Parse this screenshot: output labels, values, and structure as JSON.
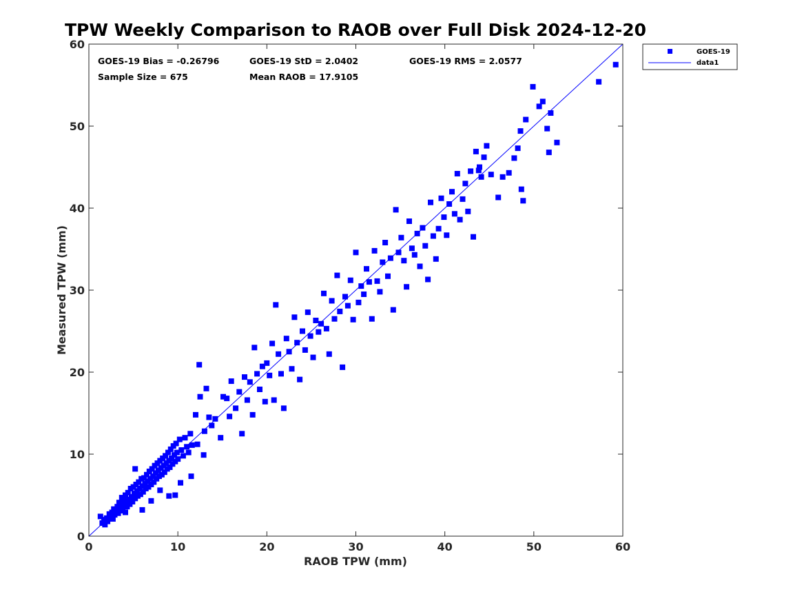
{
  "chart_data": {
    "type": "scatter",
    "title": "TPW Weekly Comparison to RAOB over Full Disk 2024-12-20",
    "xlabel": "RAOB TPW (mm)",
    "ylabel": "Measured TPW (mm)",
    "xlim": [
      0,
      60
    ],
    "ylim": [
      0,
      60
    ],
    "xticks": [
      0,
      10,
      20,
      30,
      40,
      50,
      60
    ],
    "yticks": [
      0,
      10,
      20,
      30,
      40,
      50,
      60
    ],
    "grid": false,
    "legend_position": "outside-top-right",
    "colors": {
      "marker": "#0000ff",
      "line": "#0000ff",
      "axis": "#262626"
    },
    "stats": {
      "bias": "GOES-19 Bias = -0.26796",
      "std": "GOES-19 StD = 2.0402",
      "rms": "GOES-19 RMS = 2.0577",
      "sample_size": "Sample Size = 675",
      "mean_raob": "Mean RAOB = 17.9105"
    },
    "series": [
      {
        "name": "GOES-19",
        "kind": "scatter",
        "marker": "square",
        "points": [
          [
            1.3,
            2.4
          ],
          [
            1.5,
            1.6
          ],
          [
            1.7,
            2.0
          ],
          [
            1.8,
            1.4
          ],
          [
            2.0,
            2.2
          ],
          [
            2.1,
            1.8
          ],
          [
            2.3,
            2.7
          ],
          [
            2.4,
            2.3
          ],
          [
            2.6,
            2.9
          ],
          [
            2.7,
            2.1
          ],
          [
            2.8,
            3.3
          ],
          [
            2.9,
            2.6
          ],
          [
            3.1,
            3.0
          ],
          [
            3.2,
            3.6
          ],
          [
            3.3,
            2.8
          ],
          [
            3.4,
            4.1
          ],
          [
            3.5,
            3.3
          ],
          [
            3.6,
            3.8
          ],
          [
            3.7,
            4.7
          ],
          [
            3.8,
            3.1
          ],
          [
            3.9,
            4.4
          ],
          [
            4.0,
            3.7
          ],
          [
            4.1,
            5.0
          ],
          [
            4.2,
            4.2
          ],
          [
            4.3,
            3.6
          ],
          [
            4.4,
            5.3
          ],
          [
            4.5,
            4.5
          ],
          [
            4.6,
            3.9
          ],
          [
            4.7,
            5.8
          ],
          [
            4.8,
            4.8
          ],
          [
            4.9,
            4.2
          ],
          [
            5.0,
            6.0
          ],
          [
            5.1,
            5.2
          ],
          [
            5.2,
            4.6
          ],
          [
            5.3,
            6.3
          ],
          [
            5.4,
            5.5
          ],
          [
            5.5,
            4.9
          ],
          [
            5.6,
            6.6
          ],
          [
            5.7,
            5.8
          ],
          [
            5.8,
            5.1
          ],
          [
            5.9,
            7.0
          ],
          [
            6.0,
            6.1
          ],
          [
            6.1,
            5.4
          ],
          [
            6.2,
            7.1
          ],
          [
            6.3,
            6.4
          ],
          [
            6.4,
            5.8
          ],
          [
            6.5,
            7.5
          ],
          [
            6.6,
            6.7
          ],
          [
            6.7,
            6.0
          ],
          [
            6.8,
            7.9
          ],
          [
            6.9,
            7.0
          ],
          [
            7.0,
            6.3
          ],
          [
            7.1,
            8.2
          ],
          [
            7.2,
            7.3
          ],
          [
            7.3,
            6.6
          ],
          [
            7.4,
            8.6
          ],
          [
            7.5,
            7.7
          ],
          [
            7.6,
            7.0
          ],
          [
            7.7,
            8.9
          ],
          [
            7.8,
            8.0
          ],
          [
            7.9,
            7.3
          ],
          [
            8.0,
            9.2
          ],
          [
            8.1,
            8.3
          ],
          [
            8.2,
            7.5
          ],
          [
            8.3,
            9.5
          ],
          [
            8.4,
            8.6
          ],
          [
            8.5,
            7.8
          ],
          [
            8.6,
            9.8
          ],
          [
            8.7,
            8.9
          ],
          [
            8.8,
            8.2
          ],
          [
            8.9,
            10.2
          ],
          [
            9.0,
            9.2
          ],
          [
            9.1,
            8.4
          ],
          [
            9.2,
            10.6
          ],
          [
            9.3,
            9.5
          ],
          [
            9.4,
            8.8
          ],
          [
            9.5,
            11.0
          ],
          [
            9.6,
            9.9
          ],
          [
            9.7,
            9.1
          ],
          [
            9.8,
            11.3
          ],
          [
            9.9,
            10.2
          ],
          [
            10.0,
            9.4
          ],
          [
            10.2,
            11.8
          ],
          [
            10.4,
            10.5
          ],
          [
            10.6,
            9.8
          ],
          [
            10.8,
            12.0
          ],
          [
            11.0,
            10.9
          ],
          [
            11.2,
            10.2
          ],
          [
            11.4,
            12.5
          ],
          [
            11.6,
            11.1
          ],
          [
            4.1,
            2.9
          ],
          [
            5.2,
            8.2
          ],
          [
            6.0,
            3.2
          ],
          [
            7.0,
            4.3
          ],
          [
            8.0,
            5.6
          ],
          [
            9.0,
            4.9
          ],
          [
            9.7,
            5.0
          ],
          [
            10.3,
            6.5
          ],
          [
            11.5,
            7.3
          ],
          [
            12.4,
            20.9
          ],
          [
            12.5,
            17.0
          ],
          [
            13.2,
            18.0
          ],
          [
            12.0,
            14.8
          ],
          [
            13.5,
            14.5
          ],
          [
            12.9,
            9.9
          ],
          [
            12.2,
            11.2
          ],
          [
            13.0,
            12.8
          ],
          [
            13.8,
            13.5
          ],
          [
            14.2,
            14.3
          ],
          [
            14.8,
            12.0
          ],
          [
            15.1,
            17.0
          ],
          [
            15.5,
            16.8
          ],
          [
            15.8,
            14.6
          ],
          [
            16.0,
            18.9
          ],
          [
            16.5,
            15.6
          ],
          [
            16.9,
            17.6
          ],
          [
            17.2,
            12.5
          ],
          [
            17.5,
            19.4
          ],
          [
            17.8,
            16.6
          ],
          [
            18.1,
            18.8
          ],
          [
            18.4,
            14.8
          ],
          [
            18.6,
            23.0
          ],
          [
            18.9,
            19.8
          ],
          [
            19.2,
            17.9
          ],
          [
            19.5,
            20.7
          ],
          [
            19.8,
            16.4
          ],
          [
            20.0,
            21.1
          ],
          [
            20.3,
            19.6
          ],
          [
            20.6,
            23.5
          ],
          [
            20.8,
            16.6
          ],
          [
            21.0,
            28.2
          ],
          [
            21.3,
            22.2
          ],
          [
            21.6,
            19.8
          ],
          [
            21.9,
            15.6
          ],
          [
            22.2,
            24.1
          ],
          [
            22.5,
            22.5
          ],
          [
            22.8,
            20.4
          ],
          [
            23.1,
            26.7
          ],
          [
            23.4,
            23.6
          ],
          [
            23.7,
            19.1
          ],
          [
            24.0,
            25.0
          ],
          [
            24.3,
            22.7
          ],
          [
            24.6,
            27.3
          ],
          [
            24.9,
            24.4
          ],
          [
            25.2,
            21.8
          ],
          [
            25.5,
            26.3
          ],
          [
            25.8,
            24.9
          ],
          [
            26.1,
            25.9
          ],
          [
            26.4,
            29.6
          ],
          [
            26.7,
            25.3
          ],
          [
            27.0,
            22.2
          ],
          [
            27.3,
            28.7
          ],
          [
            27.6,
            26.5
          ],
          [
            27.9,
            31.8
          ],
          [
            28.2,
            27.4
          ],
          [
            28.5,
            20.6
          ],
          [
            28.8,
            29.2
          ],
          [
            29.1,
            28.1
          ],
          [
            29.4,
            31.2
          ],
          [
            29.7,
            26.4
          ],
          [
            30.0,
            34.6
          ],
          [
            30.3,
            28.5
          ],
          [
            30.6,
            30.5
          ],
          [
            30.9,
            29.5
          ],
          [
            31.2,
            32.6
          ],
          [
            31.5,
            31.0
          ],
          [
            31.8,
            26.5
          ],
          [
            32.1,
            34.8
          ],
          [
            32.4,
            31.1
          ],
          [
            32.7,
            29.8
          ],
          [
            33.0,
            33.4
          ],
          [
            33.3,
            35.8
          ],
          [
            33.6,
            31.7
          ],
          [
            33.9,
            33.9
          ],
          [
            34.2,
            27.6
          ],
          [
            34.5,
            39.8
          ],
          [
            34.8,
            34.6
          ],
          [
            35.1,
            36.4
          ],
          [
            35.4,
            33.6
          ],
          [
            35.7,
            30.4
          ],
          [
            36.0,
            38.4
          ],
          [
            36.3,
            35.1
          ],
          [
            36.6,
            34.3
          ],
          [
            36.9,
            36.9
          ],
          [
            37.2,
            32.9
          ],
          [
            37.5,
            37.6
          ],
          [
            37.8,
            35.4
          ],
          [
            38.1,
            31.3
          ],
          [
            38.4,
            40.7
          ],
          [
            38.7,
            36.6
          ],
          [
            39.0,
            33.8
          ],
          [
            39.3,
            37.5
          ],
          [
            39.6,
            41.2
          ],
          [
            39.9,
            38.9
          ],
          [
            40.2,
            36.7
          ],
          [
            40.5,
            40.5
          ],
          [
            40.8,
            42.0
          ],
          [
            41.1,
            39.3
          ],
          [
            41.4,
            44.2
          ],
          [
            41.7,
            38.6
          ],
          [
            42.0,
            41.1
          ],
          [
            42.3,
            43.0
          ],
          [
            42.6,
            39.6
          ],
          [
            42.9,
            44.5
          ],
          [
            43.2,
            36.5
          ],
          [
            43.5,
            46.9
          ],
          [
            43.8,
            44.6
          ],
          [
            44.1,
            43.8
          ],
          [
            44.4,
            46.2
          ],
          [
            44.7,
            47.6
          ],
          [
            45.2,
            44.1
          ],
          [
            46.0,
            41.3
          ],
          [
            46.5,
            43.8
          ],
          [
            47.2,
            44.3
          ],
          [
            47.8,
            46.1
          ],
          [
            48.2,
            47.3
          ],
          [
            48.5,
            49.4
          ],
          [
            48.8,
            40.9
          ],
          [
            49.1,
            50.8
          ],
          [
            49.9,
            54.8
          ],
          [
            50.6,
            52.4
          ],
          [
            51.0,
            53.0
          ],
          [
            51.5,
            49.7
          ],
          [
            51.7,
            46.8
          ],
          [
            51.9,
            51.6
          ],
          [
            52.6,
            48.0
          ],
          [
            57.3,
            55.4
          ],
          [
            59.2,
            57.5
          ],
          [
            48.6,
            42.3
          ],
          [
            43.9,
            45.0
          ]
        ]
      },
      {
        "name": "data1",
        "kind": "line",
        "x": [
          0,
          60
        ],
        "y": [
          0,
          60
        ]
      }
    ]
  }
}
